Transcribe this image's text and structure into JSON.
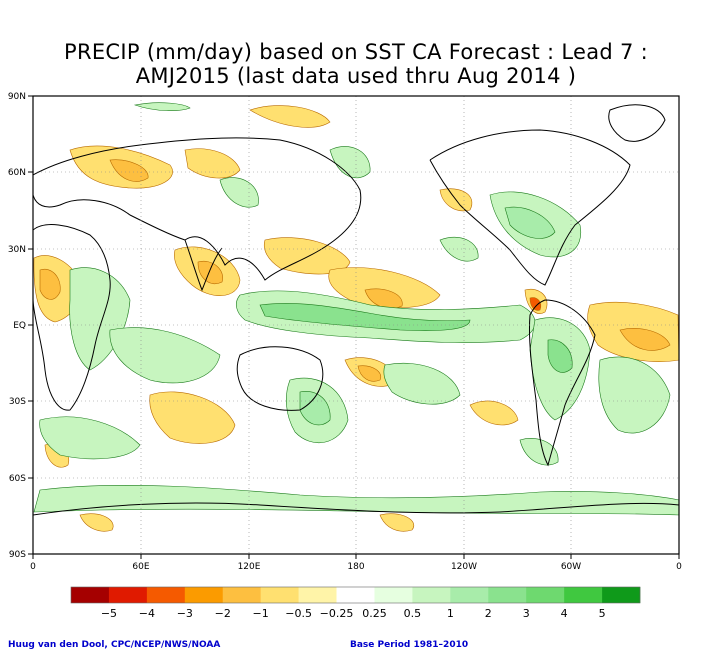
{
  "title": {
    "line1": "PRECIP (mm/day) based on SST CA Forecast : Lead 7 :",
    "line2": "AMJ2015 (last data used thru Aug 2014 )"
  },
  "axes": {
    "lat_labels": [
      "90N",
      "60N",
      "30N",
      "EQ",
      "30S",
      "60S",
      "90S"
    ],
    "lon_labels": [
      "0",
      "60E",
      "120E",
      "180",
      "120W",
      "60W",
      "0"
    ]
  },
  "colorbar": {
    "colors": [
      "#a50000",
      "#e01a00",
      "#f55a00",
      "#fb9b00",
      "#fdbf40",
      "#ffe070",
      "#fff4a8",
      "#ffffff",
      "#e6ffe0",
      "#c7f5bf",
      "#a8ecaa",
      "#8ae28e",
      "#6ed96f",
      "#40c840",
      "#0f9a1a"
    ],
    "tick_labels": [
      "−5",
      "−4",
      "−3",
      "−2",
      "−1",
      "−0.5",
      "−0.25",
      "0.25",
      "0.5",
      "1",
      "2",
      "3",
      "4",
      "5"
    ]
  },
  "credits": {
    "left": "Huug van den Dool, CPC/NCEP/NWS/NOAA",
    "right": "Base Period 1981–2010"
  }
}
